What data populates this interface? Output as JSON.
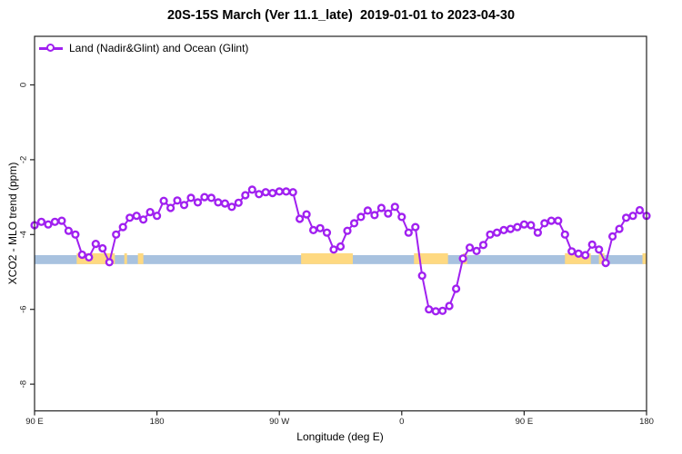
{
  "title": "20S-15S March (Ver 11.1_late)  2019-01-01 to 2023-04-30",
  "legend": {
    "label": "Land (Nadir&Glint) and Ocean (Glint)"
  },
  "chart_data": {
    "type": "line",
    "title": "20S-15S March (Ver 11.1_late)  2019-01-01 to 2023-04-30",
    "xlabel": "Longitude (deg E)",
    "ylabel": "XCO2 - MLO trend (ppm)",
    "x_axis_note": "longitude wraps eastward: 90E -> 180 -> 90W -> 0 -> 90E -> 180",
    "x_tick_deg": [
      90,
      180,
      270,
      360,
      450,
      540
    ],
    "x_tick_labels": [
      "90 E",
      "180",
      "90 W",
      "0",
      "90 E",
      "180"
    ],
    "y_ticks": [
      0,
      -2,
      -4,
      -6,
      -8
    ],
    "y_tick_labels": [
      "0",
      "-2",
      "-4",
      "-6",
      "-8"
    ],
    "xlim_deg": [
      90,
      540
    ],
    "ylim": [
      -8.7,
      1.3
    ],
    "grid": false,
    "legend_position": "top-left inside plot, no box",
    "bands": [
      {
        "name": "ocean-glint-band",
        "color": "#A8C2DF",
        "y_from": -4.55,
        "y_to": -4.79,
        "segments_deg": [
          [
            90,
            540
          ]
        ]
      },
      {
        "name": "land-highlight-band",
        "color": "#FED981",
        "y_from": -4.5,
        "y_to": -4.79,
        "segments_deg": [
          [
            121,
            149
          ],
          [
            156,
            158
          ],
          [
            166,
            170
          ],
          [
            286,
            324
          ],
          [
            369,
            394
          ],
          [
            405,
            408
          ],
          [
            480,
            499
          ],
          [
            505,
            509
          ],
          [
            537,
            540
          ]
        ]
      }
    ],
    "series": [
      {
        "name": "Land (Nadir&Glint) and Ocean (Glint)",
        "color": "#A020F0",
        "marker": "open-circle",
        "x_deg": [
          90,
          95,
          100,
          105,
          110,
          115,
          120,
          125,
          130,
          135,
          140,
          145,
          150,
          155,
          160,
          165,
          170,
          175,
          180,
          185,
          190,
          195,
          200,
          205,
          210,
          215,
          220,
          225,
          230,
          235,
          240,
          245,
          250,
          255,
          260,
          265,
          270,
          275,
          280,
          285,
          290,
          295,
          300,
          305,
          310,
          315,
          320,
          325,
          330,
          335,
          340,
          345,
          350,
          355,
          360,
          365,
          370,
          375,
          380,
          385,
          390,
          395,
          400,
          405,
          410,
          415,
          420,
          425,
          430,
          435,
          440,
          445,
          450,
          455,
          460,
          465,
          470,
          475,
          480,
          485,
          490,
          495,
          500,
          505,
          510,
          515,
          520,
          525,
          530,
          535,
          540
        ],
        "y": [
          -3.75,
          -3.66,
          -3.73,
          -3.66,
          -3.63,
          -3.9,
          -4.0,
          -4.54,
          -4.61,
          -4.25,
          -4.37,
          -4.74,
          -4.0,
          -3.8,
          -3.55,
          -3.5,
          -3.6,
          -3.4,
          -3.5,
          -3.1,
          -3.29,
          -3.09,
          -3.21,
          -3.02,
          -3.14,
          -3.0,
          -3.02,
          -3.14,
          -3.17,
          -3.26,
          -3.15,
          -2.95,
          -2.8,
          -2.92,
          -2.87,
          -2.89,
          -2.85,
          -2.85,
          -2.87,
          -3.58,
          -3.46,
          -3.88,
          -3.83,
          -3.95,
          -4.4,
          -4.32,
          -3.9,
          -3.7,
          -3.53,
          -3.36,
          -3.48,
          -3.29,
          -3.44,
          -3.26,
          -3.53,
          -3.95,
          -3.8,
          -5.1,
          -6.0,
          -6.05,
          -6.04,
          -5.91,
          -5.45,
          -4.64,
          -4.35,
          -4.44,
          -4.28,
          -4.0,
          -3.95,
          -3.88,
          -3.85,
          -3.8,
          -3.73,
          -3.75,
          -3.95,
          -3.7,
          -3.63,
          -3.63,
          -4.0,
          -4.45,
          -4.51,
          -4.55,
          -4.27,
          -4.4,
          -4.76,
          -4.05,
          -3.85,
          -3.55,
          -3.5,
          -3.35,
          -3.5
        ]
      }
    ]
  }
}
